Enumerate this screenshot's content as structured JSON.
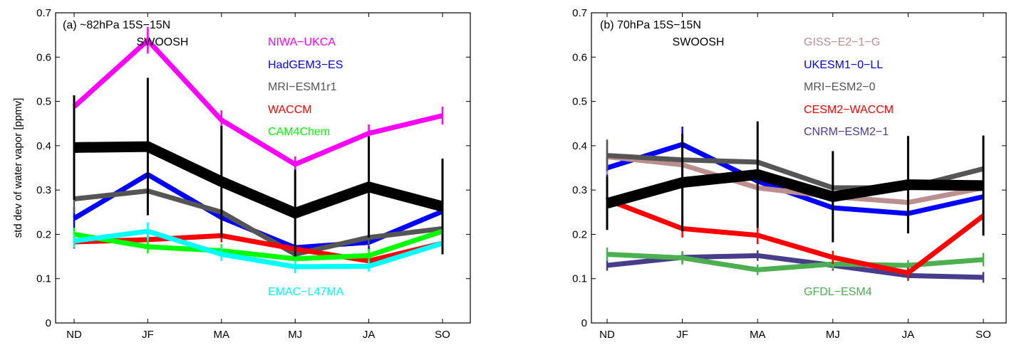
{
  "chart_data": [
    {
      "type": "line",
      "title": "(a) ~82hPa 15S−15N",
      "ylabel": "std dev of water vapor [ppmv]",
      "categories": [
        "ND",
        "JF",
        "MA",
        "MJ",
        "JA",
        "SO"
      ],
      "ylim": [
        0,
        0.7
      ],
      "yticks": [
        "0",
        "0.1",
        "0.2",
        "0.3",
        "0.4",
        "0.5",
        "0.6",
        "0.7"
      ],
      "grid": false,
      "series": [
        {
          "name": "SWOOSH",
          "color": "#000000",
          "values": [
            0.396,
            0.398,
            0.319,
            0.248,
            0.307,
            0.263
          ],
          "err": [
            0.118,
            0.155,
            0.126,
            0.098,
            0.114,
            0.108
          ]
        },
        {
          "name": "NIWA−UKCA",
          "color": "#ff00ff",
          "values": [
            0.488,
            0.638,
            0.458,
            0.358,
            0.428,
            0.468
          ],
          "err": [
            0.02,
            0.03,
            0.022,
            0.018,
            0.02,
            0.02
          ]
        },
        {
          "name": "HadGEM3−ES",
          "color": "#0000ff",
          "values": [
            0.236,
            0.335,
            0.238,
            0.17,
            0.182,
            0.252
          ],
          "err": [
            0.025,
            0.04,
            0.03,
            0.018,
            0.02,
            0.025
          ]
        },
        {
          "name": "MRI−ESM1r1",
          "color": "#555555",
          "values": [
            0.28,
            0.298,
            0.25,
            0.155,
            0.193,
            0.213
          ],
          "err": [
            0.032,
            0.035,
            0.03,
            0.02,
            0.02,
            0.02
          ]
        },
        {
          "name": "WACCM",
          "color": "#ff0000",
          "values": [
            0.183,
            0.188,
            0.197,
            0.167,
            0.14,
            0.18
          ],
          "err": [
            0.015,
            0.015,
            0.015,
            0.015,
            0.015,
            0.015
          ]
        },
        {
          "name": "CAM4Chem",
          "color": "#00ff00",
          "values": [
            0.2,
            0.172,
            0.163,
            0.145,
            0.152,
            0.207
          ],
          "err": [
            0.015,
            0.015,
            0.015,
            0.015,
            0.015,
            0.015
          ]
        },
        {
          "name": "EMAC−L47MA",
          "color": "#00ffff",
          "values": [
            0.185,
            0.207,
            0.155,
            0.127,
            0.128,
            0.18
          ],
          "err": [
            0.015,
            0.02,
            0.015,
            0.015,
            0.012,
            0.015
          ]
        }
      ]
    },
    {
      "type": "line",
      "title": "(b) 70hPa 15S−15N",
      "ylabel": "",
      "categories": [
        "ND",
        "JF",
        "MA",
        "MJ",
        "JA",
        "SO"
      ],
      "ylim": [
        0,
        0.7
      ],
      "yticks": [
        "0",
        "0.1",
        "0.2",
        "0.3",
        "0.4",
        "0.5",
        "0.6",
        "0.7"
      ],
      "grid": false,
      "series": [
        {
          "name": "SWOOSH",
          "color": "#000000",
          "values": [
            0.27,
            0.317,
            0.335,
            0.285,
            0.312,
            0.31
          ],
          "err": [
            0.06,
            0.11,
            0.12,
            0.103,
            0.11,
            0.113
          ]
        },
        {
          "name": "GISS−E2−1−G",
          "color": "#bc8f8f",
          "values": [
            0.375,
            0.357,
            0.305,
            0.285,
            0.272,
            0.305
          ],
          "err": [
            0.04,
            0.03,
            0.02,
            0.02,
            0.02,
            0.02
          ]
        },
        {
          "name": "UKESM1−0−LL",
          "color": "#0000ff",
          "values": [
            0.35,
            0.403,
            0.32,
            0.26,
            0.247,
            0.285
          ],
          "err": [
            0.04,
            0.04,
            0.03,
            0.02,
            0.02,
            0.02
          ]
        },
        {
          "name": "MRI−ESM2−0",
          "color": "#555555",
          "values": [
            0.378,
            0.368,
            0.363,
            0.305,
            0.305,
            0.348
          ],
          "err": [
            0.035,
            0.03,
            0.04,
            0.035,
            0.02,
            0.035
          ]
        },
        {
          "name": "CESM2−WACCM",
          "color": "#ff0000",
          "values": [
            0.278,
            0.213,
            0.198,
            0.148,
            0.113,
            0.242
          ],
          "err": [
            0.035,
            0.02,
            0.02,
            0.015,
            0.012,
            0.025
          ]
        },
        {
          "name": "CNRM−ESM2−1",
          "color": "#483d8b",
          "values": [
            0.13,
            0.148,
            0.152,
            0.13,
            0.107,
            0.103
          ],
          "err": [
            0.012,
            0.012,
            0.012,
            0.012,
            0.012,
            0.012
          ]
        },
        {
          "name": "GFDL−ESM4",
          "color": "#4caf50",
          "values": [
            0.155,
            0.147,
            0.12,
            0.133,
            0.13,
            0.143
          ],
          "err": [
            0.015,
            0.015,
            0.012,
            0.012,
            0.012,
            0.015
          ]
        }
      ]
    }
  ]
}
